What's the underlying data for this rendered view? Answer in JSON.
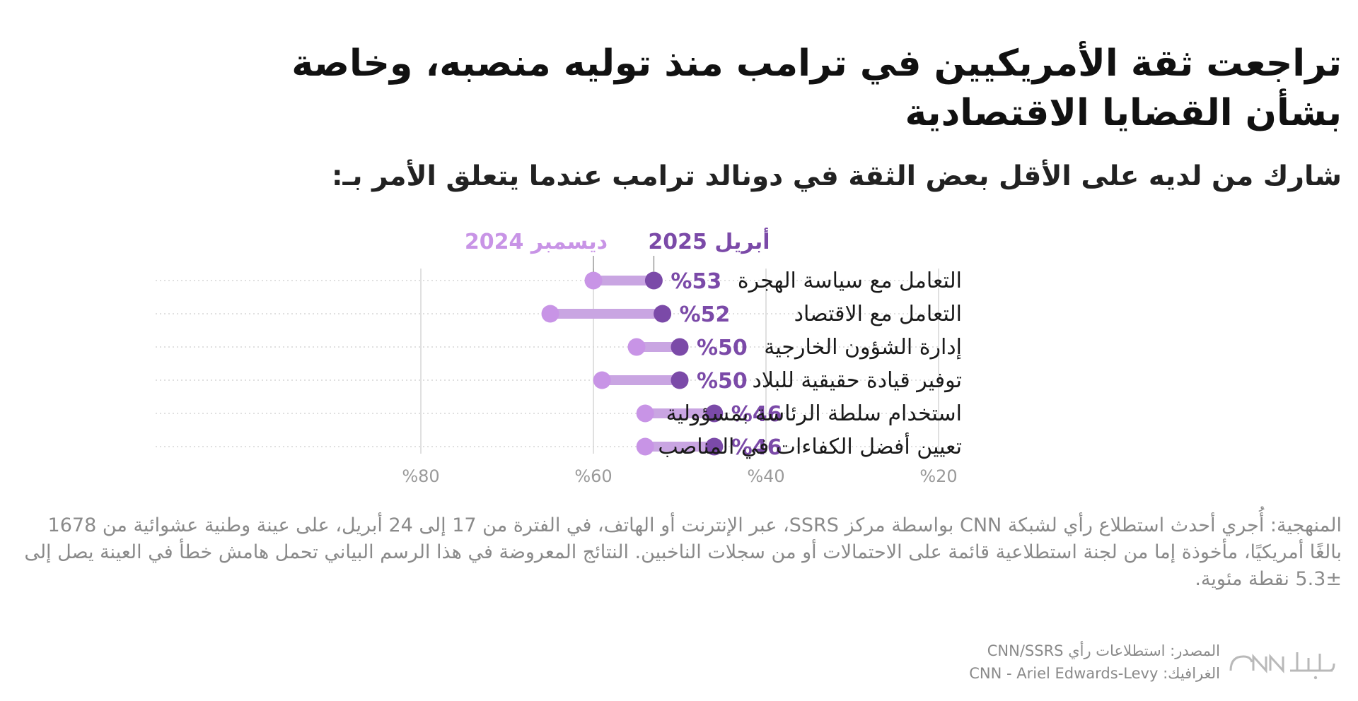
{
  "title": "تراجعت ثقة الأمريكيين في ترامب منذ توليه منصبه، وخاصة بشأن القضايا الاقتصادية",
  "subtitle": "شارك من لديه على الأقل بعض الثقة في دونالد ترامب عندما يتعلق الأمر بـ:",
  "colors": {
    "april_2025": "#7b4aa8",
    "december_2024": "#c894e6",
    "connector": "#c9a5e2",
    "grid": "#d6d6d6",
    "axis_text": "#9a9a9a",
    "label_text": "#1a1a1a"
  },
  "chart_data": {
    "type": "dumbbell",
    "x_axis": {
      "reversed": true,
      "xlim": [
        20,
        80
      ],
      "ticks": [
        80,
        60,
        40,
        20
      ],
      "tick_labels": [
        "%80",
        "%60",
        "%40",
        "%20"
      ]
    },
    "series": [
      {
        "name": "ديسمبر 2024",
        "key": "december_2024"
      },
      {
        "name": "أبريل 2025",
        "key": "april_2025"
      }
    ],
    "categories": [
      "التعامل مع سياسة الهجرة",
      "التعامل مع الاقتصاد",
      "إدارة الشؤون الخارجية",
      "توفير قيادة حقيقية للبلاد",
      "استخدام سلطة الرئاسة بمسؤولية",
      "تعيين أفضل الكفاءات في المناصب"
    ],
    "december_2024": [
      60,
      65,
      55,
      59,
      54,
      54
    ],
    "april_2025": [
      53,
      52,
      50,
      50,
      46,
      46
    ],
    "value_labels": [
      "%53",
      "%52",
      "%50",
      "%50",
      "%46",
      "%46"
    ],
    "grid": true,
    "legend": "annotations above first row"
  },
  "methodology": "المنهجية: أُجري أحدث استطلاع رأي لشبكة CNN بواسطة مركز SSRS، عبر الإنترنت أو الهاتف، في الفترة من 17 إلى 24 أبريل، على عينة وطنية عشوائية من 1678 بالغًا أمريكيًا، مأخوذة إما من لجنة استطلاعية قائمة على الاحتمالات أو من سجلات الناخبين. النتائج المعروضة في هذا الرسم البياني تحمل هامش خطأ في العينة يصل إلى ±5.3 نقطة مئوية.",
  "footer": {
    "source": "المصدر: استطلاعات رأي CNN/SSRS",
    "graphic": "الغرافيك: CNN - Ariel Edwards-Levy",
    "logo_text": "CNN بالعربية"
  }
}
